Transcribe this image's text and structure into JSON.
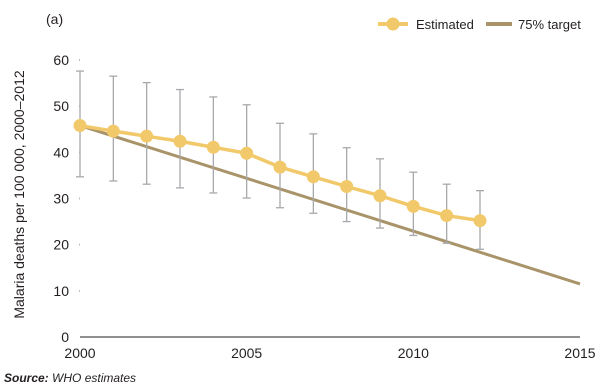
{
  "panel_label": "(a)",
  "source": {
    "label": "Source:",
    "text": "WHO estimates"
  },
  "chart_data": {
    "type": "line",
    "title": "",
    "xlabel": "",
    "ylabel": "Malaria deaths per 100 000, 2000–2012",
    "xlim": [
      2000,
      2015
    ],
    "ylim": [
      0,
      60
    ],
    "x_ticks": [
      2000,
      2005,
      2010,
      2015
    ],
    "y_ticks": [
      0,
      10,
      20,
      30,
      40,
      50,
      60
    ],
    "grid": false,
    "legend_position": "top-right",
    "colors": {
      "estimated": "#f2c96a",
      "target": "#a9946a",
      "error_bar": "#a7a9ac"
    },
    "series": [
      {
        "name": "Estimated",
        "x": [
          2000,
          2001,
          2002,
          2003,
          2004,
          2005,
          2006,
          2007,
          2008,
          2009,
          2010,
          2011,
          2012
        ],
        "values": [
          45.8,
          44.6,
          43.5,
          42.4,
          41.1,
          39.8,
          36.8,
          34.7,
          32.6,
          30.6,
          28.3,
          26.3,
          25.2
        ],
        "error_low": [
          34.7,
          33.8,
          33.1,
          32.3,
          31.2,
          30.1,
          28.0,
          26.8,
          25.0,
          23.6,
          22.0,
          20.3,
          19.0
        ],
        "error_high": [
          57.6,
          56.5,
          55.1,
          53.6,
          52.0,
          50.3,
          46.3,
          44.0,
          41.0,
          38.6,
          35.7,
          33.1,
          31.7
        ]
      },
      {
        "name": "75% target",
        "x": [
          2000,
          2015
        ],
        "values": [
          45.8,
          11.5
        ]
      }
    ]
  }
}
